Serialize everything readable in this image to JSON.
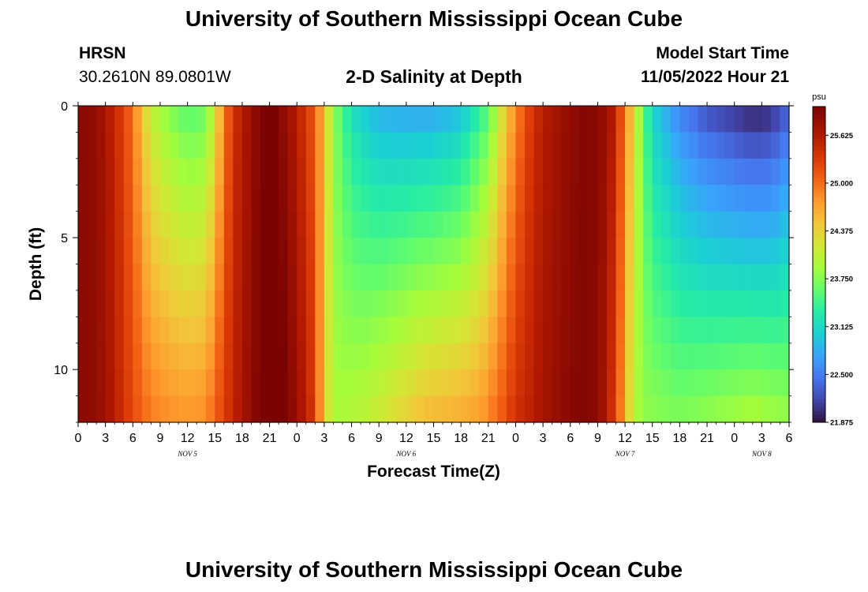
{
  "page": {
    "title_top": "University of Southern Mississippi Ocean Cube",
    "title_bottom": "University of Southern Mississippi Ocean Cube"
  },
  "header": {
    "station_name": "HRSN",
    "station_coords": "30.2610N  89.0801W",
    "plot_title": "2-D Salinity at Depth",
    "start_label": "Model Start Time",
    "start_value": "11/05/2022 Hour 21"
  },
  "chart_data": {
    "type": "heatmap",
    "title": "2-D Salinity at Depth",
    "xlabel": "Forecast Time(Z)",
    "ylabel": "Depth (ft)",
    "x_unit": "forecast hours from 11/05/2022 00Z",
    "xlim": [
      0,
      78
    ],
    "x_ticks": [
      0,
      3,
      6,
      9,
      12,
      15,
      18,
      21,
      24,
      27,
      30,
      33,
      36,
      39,
      42,
      45,
      48,
      51,
      54,
      57,
      60,
      63,
      66,
      69,
      72,
      75,
      78
    ],
    "x_tick_labels": [
      "0",
      "3",
      "6",
      "9",
      "12",
      "15",
      "18",
      "21",
      "0",
      "3",
      "6",
      "9",
      "12",
      "15",
      "18",
      "21",
      "0",
      "3",
      "6",
      "9",
      "12",
      "15",
      "18",
      "21",
      "0",
      "3",
      "6"
    ],
    "day_labels": [
      {
        "text": "NOV 5",
        "x": 12
      },
      {
        "text": "NOV 6",
        "x": 36
      },
      {
        "text": "NOV 7",
        "x": 60
      },
      {
        "text": "NOV 8",
        "x": 75
      }
    ],
    "ylim": [
      0,
      12
    ],
    "y_ticks": [
      0,
      5,
      10
    ],
    "y_tick_labels": [
      "0",
      "5",
      "10"
    ],
    "depths_ft": [
      0.5,
      1.5,
      2.5,
      3.5,
      4.5,
      5.5,
      6.5,
      7.5,
      8.5,
      9.5,
      10.5,
      11.5
    ],
    "salinity_model": {
      "hours_step": 1,
      "surface_keypoints": [
        [
          0,
          25.9
        ],
        [
          2,
          25.85
        ],
        [
          4,
          25.5
        ],
        [
          6,
          25.0
        ],
        [
          7,
          24.5
        ],
        [
          8,
          24.1
        ],
        [
          10,
          23.8
        ],
        [
          12,
          23.6
        ],
        [
          14,
          23.7
        ],
        [
          15,
          24.2
        ],
        [
          16,
          24.9
        ],
        [
          17,
          25.4
        ],
        [
          19,
          25.8
        ],
        [
          21,
          26.1
        ],
        [
          22,
          25.95
        ],
        [
          24,
          25.6
        ],
        [
          26,
          25.1
        ],
        [
          27,
          24.5
        ],
        [
          28,
          23.8
        ],
        [
          30,
          23.2
        ],
        [
          33,
          22.9
        ],
        [
          36,
          22.85
        ],
        [
          39,
          22.85
        ],
        [
          42,
          23.0
        ],
        [
          45,
          23.6
        ],
        [
          47,
          24.5
        ],
        [
          49,
          25.2
        ],
        [
          51,
          25.6
        ],
        [
          54,
          25.85
        ],
        [
          56,
          25.95
        ],
        [
          58,
          25.8
        ],
        [
          59,
          25.5
        ],
        [
          60,
          24.9
        ],
        [
          61,
          24.3
        ],
        [
          62,
          23.6
        ],
        [
          63,
          23.1
        ],
        [
          66,
          22.6
        ],
        [
          69,
          22.3
        ],
        [
          72,
          22.15
        ],
        [
          74,
          22.05
        ],
        [
          76,
          22.1
        ],
        [
          78,
          22.4
        ]
      ],
      "bottom_keypoints": [
        [
          0,
          25.9
        ],
        [
          2,
          25.85
        ],
        [
          4,
          25.6
        ],
        [
          6,
          25.2
        ],
        [
          8,
          24.9
        ],
        [
          10,
          24.8
        ],
        [
          12,
          24.75
        ],
        [
          14,
          24.8
        ],
        [
          16,
          25.3
        ],
        [
          18,
          25.7
        ],
        [
          20,
          26.0
        ],
        [
          22,
          26.1
        ],
        [
          24,
          25.8
        ],
        [
          26,
          25.3
        ],
        [
          27,
          24.4
        ],
        [
          28,
          23.9
        ],
        [
          31,
          24.0
        ],
        [
          34,
          24.2
        ],
        [
          38,
          24.5
        ],
        [
          42,
          24.6
        ],
        [
          44,
          24.7
        ],
        [
          46,
          25.0
        ],
        [
          48,
          25.4
        ],
        [
          51,
          25.7
        ],
        [
          53,
          25.85
        ],
        [
          55,
          25.95
        ],
        [
          57,
          25.9
        ],
        [
          59,
          25.3
        ],
        [
          60,
          24.6
        ],
        [
          61,
          24.0
        ],
        [
          62,
          23.8
        ],
        [
          66,
          23.7
        ],
        [
          70,
          23.8
        ],
        [
          74,
          23.9
        ],
        [
          78,
          23.8
        ]
      ]
    },
    "colorbar": {
      "unit": "psu",
      "vmin": 21.875,
      "vmax": 26.0,
      "tick_values": [
        25.625,
        25.0,
        24.375,
        23.75,
        23.125,
        22.5,
        21.875
      ],
      "tick_labels": [
        "25.625",
        "25.000",
        "24.375",
        "23.750",
        "23.125",
        "22.500",
        "21.875"
      ],
      "colormap_stops": [
        [
          0.0,
          "#30123b"
        ],
        [
          0.07,
          "#4145ab"
        ],
        [
          0.14,
          "#4675ed"
        ],
        [
          0.21,
          "#39a2fc"
        ],
        [
          0.28,
          "#1bcfd4"
        ],
        [
          0.35,
          "#24eca6"
        ],
        [
          0.42,
          "#61fc6c"
        ],
        [
          0.49,
          "#a4fc3b"
        ],
        [
          0.56,
          "#d1e834"
        ],
        [
          0.63,
          "#f3c63a"
        ],
        [
          0.7,
          "#fe9b2d"
        ],
        [
          0.77,
          "#f36315"
        ],
        [
          0.84,
          "#d93806"
        ],
        [
          0.91,
          "#b11901"
        ],
        [
          1.0,
          "#7a0402"
        ]
      ]
    }
  }
}
